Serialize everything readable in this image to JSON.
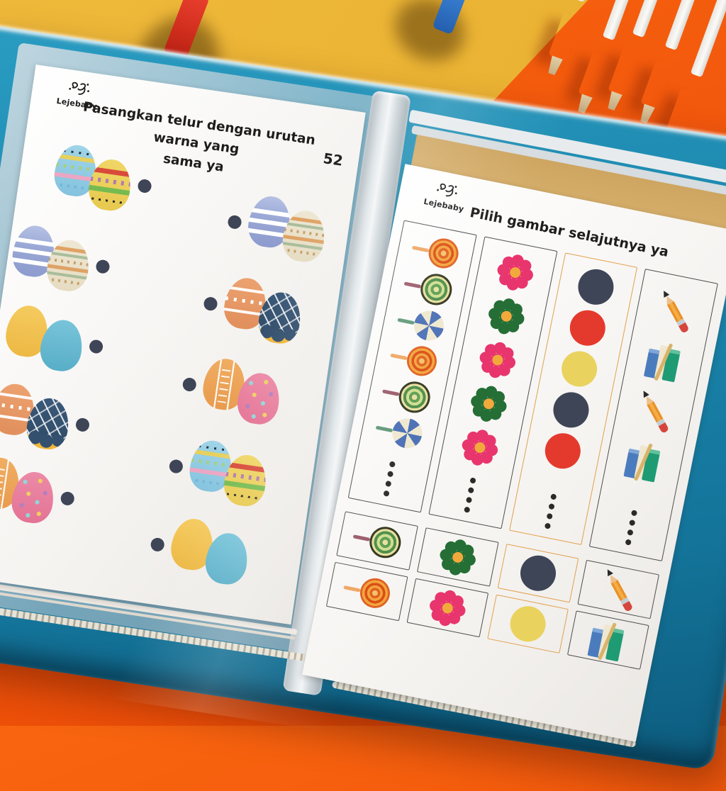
{
  "scene": {
    "description": "Photo of an open blue display-book binder with two Lejebaby preschool worksheet pages in plastic sleeves, lying on a yellow and orange background with colorful whiteboard markers at the top",
    "palette": {
      "background_yellow": "#eab235",
      "background_orange": "#f2560c",
      "binder_teal": "#1b86ac",
      "page_white": "#f7f5f2",
      "connector_dot": "#3e4557",
      "box_border_dark": "#4e4e4e",
      "box_border_orange": "#e2a04e"
    },
    "markers_top_right": {
      "barrel_color": "#f4f2ee",
      "tip_color": "#d4bd92",
      "cap_colors": [
        "#f089c4",
        "#9a4fb5",
        "#2eb6e8",
        "#e02a1f",
        "#f2c728"
      ]
    },
    "marker_stubs_top_left": {
      "colors": [
        "#da2d20",
        "#2e74c8"
      ]
    }
  },
  "brand": {
    "name": "Lejebaby"
  },
  "left_page": {
    "page_number": "52",
    "title_line1": "Pasangkan telur dengan urutan warna yang",
    "title_line2": "sama ya",
    "left_column_pairs": [
      [
        "egg-blue-zigzag",
        "egg-yellow-zigzag"
      ],
      [
        "egg-periwinkle-zigzag",
        "egg-cream-stripes"
      ],
      [
        "egg-plain-yellow",
        "egg-plain-teal"
      ],
      [
        "egg-orange-waves",
        "egg-navy-sprinkles"
      ],
      [
        "egg-orange-chevron",
        "egg-pink-dots"
      ]
    ],
    "right_column_pairs": [
      [
        "egg-periwinkle-zigzag",
        "egg-cream-stripes"
      ],
      [
        "egg-orange-waves",
        "egg-navy-sprinkles"
      ],
      [
        "egg-orange-chevron",
        "egg-pink-dots"
      ],
      [
        "egg-blue-zigzag",
        "egg-yellow-zigzag"
      ],
      [
        "egg-plain-yellow",
        "egg-plain-teal"
      ]
    ]
  },
  "right_page": {
    "title": "Pilih gambar selajutnya ya",
    "pattern_columns": [
      {
        "border": "dark",
        "items": [
          "lollipop-orange",
          "lollipop-green",
          "lollipop-blue",
          "lollipop-orange",
          "lollipop-green",
          "lollipop-blue",
          "answer-dots"
        ]
      },
      {
        "border": "dark",
        "items": [
          "flower-pink",
          "flower-green",
          "flower-pink",
          "flower-green",
          "flower-pink",
          "answer-dots"
        ]
      },
      {
        "border": "orange",
        "items": [
          "circle-navy",
          "circle-red",
          "circle-yellow",
          "circle-navy",
          "circle-red",
          "answer-dots"
        ]
      },
      {
        "border": "dark",
        "items": [
          "pencil",
          "books",
          "pencil",
          "books",
          "answer-dots"
        ]
      }
    ],
    "answer_boxes": [
      {
        "border": "dark",
        "options": [
          "lollipop-green",
          "lollipop-orange"
        ]
      },
      {
        "border": "dark",
        "options": [
          "flower-green",
          "flower-pink"
        ]
      },
      {
        "border": "orange",
        "options": [
          "circle-navy",
          "circle-yellow"
        ]
      },
      {
        "border": "dark",
        "options": [
          "pencil",
          "books"
        ]
      }
    ]
  }
}
